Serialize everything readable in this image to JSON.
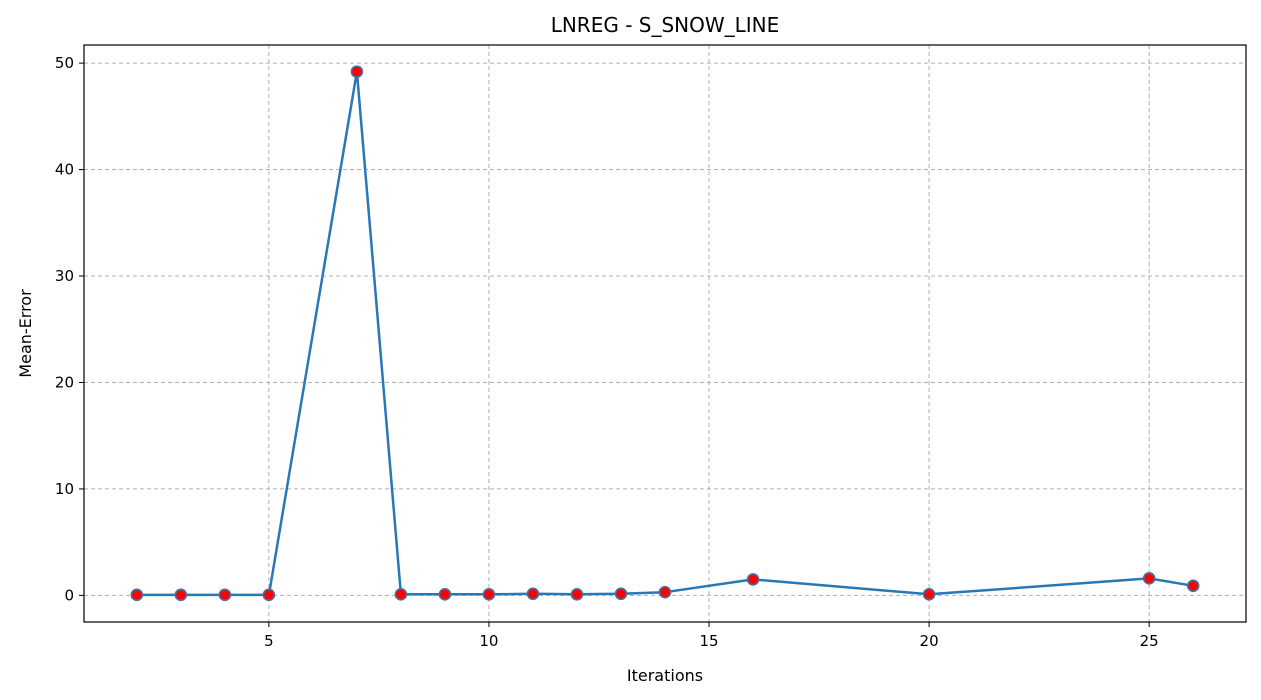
{
  "chart_data": {
    "type": "line",
    "title": "LNREG - S_SNOW_LINE",
    "xlabel": "Iterations",
    "ylabel": "Mean-Error",
    "xlim": [
      0.8,
      27.2
    ],
    "ylim": [
      -2.5,
      51.7
    ],
    "xticks": [
      5,
      10,
      15,
      20,
      25
    ],
    "yticks": [
      0,
      10,
      20,
      30,
      40,
      50
    ],
    "grid": true,
    "line_style": "solid",
    "line_color": "#2878b5",
    "marker": "circle",
    "marker_face_color": "#ff0000",
    "marker_edge_color": "#3f73a6",
    "series": [
      {
        "x": [
          2,
          3,
          4,
          5,
          7,
          8,
          9,
          10,
          11,
          12,
          13,
          14,
          16,
          20,
          25,
          26
        ],
        "y": [
          0.05,
          0.05,
          0.05,
          0.05,
          49.2,
          0.1,
          0.1,
          0.1,
          0.15,
          0.1,
          0.15,
          0.3,
          1.5,
          0.1,
          1.6,
          0.9
        ]
      }
    ]
  }
}
